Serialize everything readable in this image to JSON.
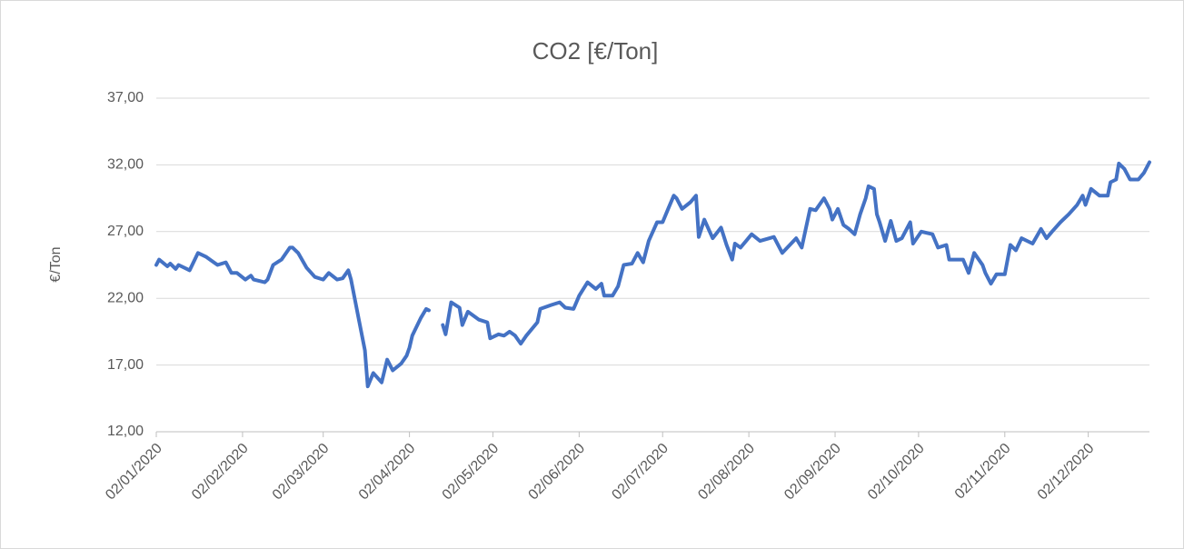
{
  "chart_data": {
    "type": "line",
    "title": "CO2 [€/Ton]",
    "y_label": "€/Ton",
    "color": "#4472c4",
    "grid": true,
    "x": [
      "02/01/2020",
      "03/01/2020",
      "06/01/2020",
      "07/01/2020",
      "09/01/2020",
      "10/01/2020",
      "13/01/2020",
      "14/01/2020",
      "17/01/2020",
      "20/01/2020",
      "22/01/2020",
      "24/01/2020",
      "27/01/2020",
      "29/01/2020",
      "31/01/2020",
      "03/02/2020",
      "05/02/2020",
      "06/02/2020",
      "10/02/2020",
      "11/02/2020",
      "13/02/2020",
      "16/02/2020",
      "19/02/2020",
      "20/02/2020",
      "22/02/2020",
      "25/02/2020",
      "28/02/2020",
      "02/03/2020",
      "04/03/2020",
      "07/03/2020",
      "09/03/2020",
      "11/03/2020",
      "12/03/2020",
      "15/03/2020",
      "17/03/2020",
      "18/03/2020",
      "20/03/2020",
      "23/03/2020",
      "25/03/2020",
      "27/03/2020",
      "30/03/2020",
      "01/04/2020",
      "02/04/2020",
      "03/04/2020",
      "06/04/2020",
      "08/04/2020",
      "09/04/2020",
      "10/04/2020",
      "14/04/2020",
      "15/04/2020",
      "17/04/2020",
      "20/04/2020",
      "21/04/2020",
      "23/04/2020",
      "27/04/2020",
      "30/04/2020",
      "01/05/2020",
      "04/05/2020",
      "06/05/2020",
      "08/05/2020",
      "10/05/2020",
      "12/05/2020",
      "14/05/2020",
      "18/05/2020",
      "19/05/2020",
      "23/05/2020",
      "26/05/2020",
      "28/05/2020",
      "31/05/2020",
      "02/06/2020",
      "05/06/2020",
      "08/06/2020",
      "10/06/2020",
      "11/06/2020",
      "14/06/2020",
      "16/06/2020",
      "18/06/2020",
      "21/06/2020",
      "23/06/2020",
      "25/06/2020",
      "27/06/2020",
      "30/06/2020",
      "02/07/2020",
      "04/07/2020",
      "06/07/2020",
      "07/07/2020",
      "09/07/2020",
      "12/07/2020",
      "14/07/2020",
      "15/07/2020",
      "17/07/2020",
      "20/07/2020",
      "23/07/2020",
      "25/07/2020",
      "27/07/2020",
      "28/07/2020",
      "30/07/2020",
      "01/08/2020",
      "03/08/2020",
      "06/08/2020",
      "11/08/2020",
      "14/08/2020",
      "19/08/2020",
      "21/08/2020",
      "24/08/2020",
      "26/08/2020",
      "29/08/2020",
      "31/08/2020",
      "01/09/2020",
      "03/09/2020",
      "05/09/2020",
      "07/09/2020",
      "09/09/2020",
      "11/09/2020",
      "13/09/2020",
      "14/09/2020",
      "16/09/2020",
      "17/09/2020",
      "18/09/2020",
      "20/09/2020",
      "22/09/2020",
      "24/09/2020",
      "26/09/2020",
      "29/09/2020",
      "30/09/2020",
      "03/10/2020",
      "07/10/2020",
      "09/10/2020",
      "12/10/2020",
      "13/10/2020",
      "18/10/2020",
      "20/10/2020",
      "22/10/2020",
      "25/10/2020",
      "26/10/2020",
      "28/10/2020",
      "30/10/2020",
      "02/11/2020",
      "04/11/2020",
      "06/11/2020",
      "08/11/2020",
      "12/11/2020",
      "15/11/2020",
      "17/11/2020",
      "19/11/2020",
      "22/11/2020",
      "25/11/2020",
      "28/11/2020",
      "30/11/2020",
      "01/12/2020",
      "03/12/2020",
      "06/12/2020",
      "09/12/2020",
      "10/12/2020",
      "12/12/2020",
      "13/12/2020",
      "15/12/2020",
      "17/12/2020",
      "20/12/2020",
      "22/12/2020",
      "24/12/2020"
    ],
    "values": [
      24.5,
      24.9,
      24.4,
      24.6,
      24.2,
      24.5,
      24.2,
      24.1,
      25.4,
      25.1,
      24.8,
      24.5,
      24.7,
      23.9,
      23.9,
      23.4,
      23.7,
      23.4,
      23.2,
      23.4,
      24.5,
      24.9,
      25.8,
      25.8,
      25.4,
      24.3,
      23.6,
      23.4,
      23.9,
      23.4,
      23.5,
      24.1,
      23.4,
      20.2,
      18.1,
      15.4,
      16.4,
      15.7,
      17.4,
      16.6,
      17.1,
      17.7,
      18.3,
      19.2,
      20.5,
      21.2,
      21.1,
      null,
      20.0,
      19.3,
      21.7,
      21.3,
      20.0,
      21.0,
      20.4,
      20.2,
      19.0,
      19.3,
      19.2,
      19.5,
      19.2,
      18.6,
      19.2,
      20.2,
      21.2,
      21.5,
      21.7,
      21.3,
      21.2,
      22.2,
      23.2,
      22.7,
      23.1,
      22.2,
      22.2,
      22.9,
      24.5,
      24.6,
      25.4,
      24.7,
      26.3,
      27.7,
      27.7,
      28.7,
      29.7,
      29.5,
      28.7,
      29.2,
      29.7,
      26.6,
      27.9,
      26.5,
      27.3,
      26.0,
      24.9,
      26.1,
      25.8,
      26.3,
      26.8,
      26.3,
      26.6,
      25.4,
      26.5,
      25.8,
      28.7,
      28.6,
      29.5,
      28.7,
      27.9,
      28.7,
      27.5,
      27.2,
      26.8,
      28.3,
      29.5,
      30.4,
      30.2,
      28.3,
      27.7,
      26.3,
      27.8,
      26.3,
      26.5,
      27.7,
      26.1,
      27.0,
      26.8,
      25.8,
      26.0,
      24.9,
      24.9,
      23.9,
      25.4,
      24.5,
      23.9,
      23.1,
      23.8,
      23.8,
      26.0,
      25.6,
      26.5,
      26.1,
      27.2,
      26.5,
      27.0,
      27.7,
      28.3,
      29.0,
      29.7,
      29.0,
      30.2,
      29.7,
      29.7,
      30.7,
      30.9,
      32.1,
      31.7,
      30.9,
      30.9,
      31.4,
      32.2
    ],
    "xlim": [
      "02/01/2020",
      "24/12/2020"
    ],
    "xticks": [
      "02/01/2020",
      "02/02/2020",
      "02/03/2020",
      "02/04/2020",
      "02/05/2020",
      "02/06/2020",
      "02/07/2020",
      "02/08/2020",
      "02/09/2020",
      "02/10/2020",
      "02/11/2020",
      "02/12/2020"
    ],
    "ylim": [
      12,
      37
    ],
    "yticks": [
      {
        "value": 12,
        "label": "12,00"
      },
      {
        "value": 17,
        "label": "17,00"
      },
      {
        "value": 22,
        "label": "22,00"
      },
      {
        "value": 27,
        "label": "27,00"
      },
      {
        "value": 32,
        "label": "32,00"
      },
      {
        "value": 37,
        "label": "37,00"
      }
    ]
  }
}
